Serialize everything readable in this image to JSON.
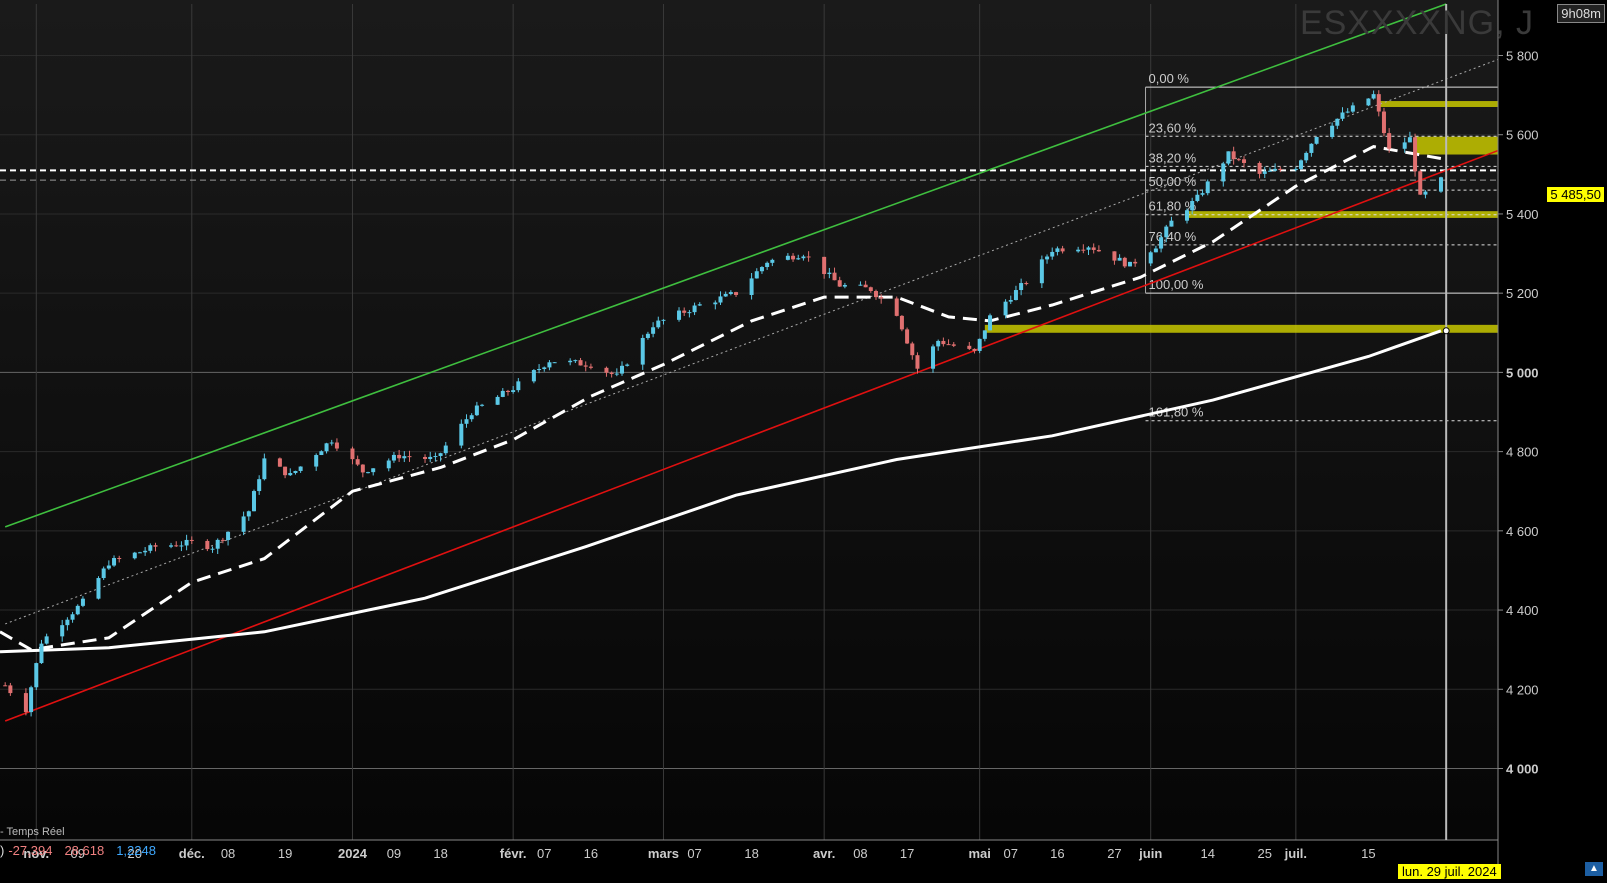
{
  "header": {
    "symbol_watermark": "ESXXXXNG, J",
    "timer": "9h08m"
  },
  "status_bar": {
    "realtime_label": "- Temps Réel",
    "indicator_prefix": ")",
    "indicator_values": [
      "-27,394",
      "28,618",
      "1,2248"
    ],
    "indicator_colors": [
      "#f08080",
      "#f08080",
      "#3fa9ff"
    ]
  },
  "last_price_label": "5 485,50",
  "hover_date_label": "lun. 29 juil. 2024",
  "colors": {
    "up_candle": "#5bc8e6",
    "down_candle": "#e07070",
    "upper_channel": "#3fbf3f",
    "lower_channel": "#e01010",
    "fib_zone": "#c8c800",
    "ma_long": "#ffffff"
  },
  "chart_data": {
    "type": "candlestick",
    "y_axis": {
      "ylim": [
        3870,
        5930
      ],
      "ticks": [
        4000,
        4200,
        4400,
        4600,
        4800,
        5000,
        5200,
        5400,
        5600,
        5800
      ],
      "tick_labels": [
        "4 000",
        "4 200",
        "4 400",
        "4 600",
        "4 800",
        "5 000",
        "5 200",
        "5 400",
        "5 600",
        "5 800"
      ],
      "bold_ticks": [
        4000,
        5000
      ]
    },
    "x_axis": {
      "start_date": "2023-10-25",
      "end_date": "2024-08-09",
      "tick_labels": [
        {
          "date": "2023-11-01",
          "label": "nov.",
          "bold": true
        },
        {
          "date": "2023-11-09",
          "label": "09"
        },
        {
          "date": "2023-11-20",
          "label": "20"
        },
        {
          "date": "2023-12-01",
          "label": "déc.",
          "bold": true
        },
        {
          "date": "2023-12-08",
          "label": "08"
        },
        {
          "date": "2023-12-19",
          "label": "19"
        },
        {
          "date": "2024-01-01",
          "label": "2024",
          "bold": true
        },
        {
          "date": "2024-01-09",
          "label": "09"
        },
        {
          "date": "2024-01-18",
          "label": "18"
        },
        {
          "date": "2024-02-01",
          "label": "févr.",
          "bold": true
        },
        {
          "date": "2024-02-07",
          "label": "07"
        },
        {
          "date": "2024-02-16",
          "label": "16"
        },
        {
          "date": "2024-03-01",
          "label": "mars",
          "bold": true
        },
        {
          "date": "2024-03-07",
          "label": "07"
        },
        {
          "date": "2024-03-18",
          "label": "18"
        },
        {
          "date": "2024-04-01",
          "label": "avr.",
          "bold": true
        },
        {
          "date": "2024-04-08",
          "label": "08"
        },
        {
          "date": "2024-04-17",
          "label": "17"
        },
        {
          "date": "2024-05-01",
          "label": "mai",
          "bold": true
        },
        {
          "date": "2024-05-07",
          "label": "07"
        },
        {
          "date": "2024-05-16",
          "label": "16"
        },
        {
          "date": "2024-05-27",
          "label": "27"
        },
        {
          "date": "2024-06-03",
          "label": "juin",
          "bold": true
        },
        {
          "date": "2024-06-14",
          "label": "14"
        },
        {
          "date": "2024-06-25",
          "label": "25"
        },
        {
          "date": "2024-07-01",
          "label": "juil.",
          "bold": true
        },
        {
          "date": "2024-07-15",
          "label": "15"
        }
      ]
    },
    "price_path": [
      [
        "2023-10-26",
        4210
      ],
      [
        "2023-10-30",
        4150
      ],
      [
        "2023-11-02",
        4320
      ],
      [
        "2023-11-06",
        4370
      ],
      [
        "2023-11-10",
        4420
      ],
      [
        "2023-11-15",
        4520
      ],
      [
        "2023-11-24",
        4560
      ],
      [
        "2023-12-01",
        4570
      ],
      [
        "2023-12-05",
        4560
      ],
      [
        "2023-12-12",
        4650
      ],
      [
        "2023-12-15",
        4780
      ],
      [
        "2023-12-20",
        4740
      ],
      [
        "2023-12-28",
        4830
      ],
      [
        "2024-01-03",
        4750
      ],
      [
        "2024-01-10",
        4790
      ],
      [
        "2024-01-17",
        4780
      ],
      [
        "2024-01-24",
        4900
      ],
      [
        "2024-02-01",
        4960
      ],
      [
        "2024-02-08",
        5030
      ],
      [
        "2024-02-16",
        5020
      ],
      [
        "2024-02-21",
        4990
      ],
      [
        "2024-02-28",
        5120
      ],
      [
        "2024-03-08",
        5170
      ],
      [
        "2024-03-15",
        5200
      ],
      [
        "2024-03-21",
        5280
      ],
      [
        "2024-03-28",
        5300
      ],
      [
        "2024-04-04",
        5220
      ],
      [
        "2024-04-10",
        5210
      ],
      [
        "2024-04-15",
        5150
      ],
      [
        "2024-04-19",
        5010
      ],
      [
        "2024-04-23",
        5080
      ],
      [
        "2024-04-30",
        5050
      ],
      [
        "2024-05-03",
        5140
      ],
      [
        "2024-05-10",
        5230
      ],
      [
        "2024-05-15",
        5310
      ],
      [
        "2024-05-22",
        5320
      ],
      [
        "2024-05-30",
        5270
      ],
      [
        "2024-06-04",
        5320
      ],
      [
        "2024-06-07",
        5380
      ],
      [
        "2024-06-12",
        5440
      ],
      [
        "2024-06-18",
        5550
      ],
      [
        "2024-06-24",
        5500
      ],
      [
        "2024-07-01",
        5520
      ],
      [
        "2024-07-05",
        5600
      ],
      [
        "2024-07-10",
        5650
      ],
      [
        "2024-07-16",
        5700
      ],
      [
        "2024-07-19",
        5560
      ],
      [
        "2024-07-23",
        5590
      ],
      [
        "2024-07-25",
        5440
      ],
      [
        "2024-07-29",
        5485
      ]
    ],
    "moving_averages": [
      {
        "style": "dashed",
        "points": [
          [
            "2023-10-25",
            4345
          ],
          [
            "2023-10-31",
            4300
          ],
          [
            "2023-11-15",
            4330
          ],
          [
            "2023-12-01",
            4470
          ],
          [
            "2023-12-15",
            4530
          ],
          [
            "2024-01-01",
            4700
          ],
          [
            "2024-01-18",
            4760
          ],
          [
            "2024-02-01",
            4830
          ],
          [
            "2024-02-16",
            4940
          ],
          [
            "2024-03-01",
            5020
          ],
          [
            "2024-03-18",
            5130
          ],
          [
            "2024-04-01",
            5190
          ],
          [
            "2024-04-15",
            5190
          ],
          [
            "2024-04-25",
            5140
          ],
          [
            "2024-05-03",
            5130
          ],
          [
            "2024-05-15",
            5170
          ],
          [
            "2024-06-01",
            5240
          ],
          [
            "2024-06-15",
            5330
          ],
          [
            "2024-07-01",
            5470
          ],
          [
            "2024-07-16",
            5570
          ],
          [
            "2024-07-29",
            5540
          ]
        ]
      },
      {
        "style": "solid",
        "points": [
          [
            "2023-10-25",
            4295
          ],
          [
            "2023-11-15",
            4305
          ],
          [
            "2023-12-15",
            4345
          ],
          [
            "2024-01-15",
            4430
          ],
          [
            "2024-02-15",
            4560
          ],
          [
            "2024-03-15",
            4690
          ],
          [
            "2024-04-15",
            4780
          ],
          [
            "2024-05-15",
            4840
          ],
          [
            "2024-06-15",
            4930
          ],
          [
            "2024-07-15",
            5040
          ],
          [
            "2024-07-29",
            5105
          ]
        ]
      }
    ],
    "trend_lines": [
      {
        "color": "upper_channel",
        "from": [
          "2023-10-26",
          4610
        ],
        "to": [
          "2024-07-30",
          5930
        ]
      },
      {
        "color": "lower_channel",
        "from": [
          "2023-10-26",
          4120
        ],
        "to": [
          "2024-08-09",
          5560
        ]
      },
      {
        "color": "dotted",
        "from": [
          "2023-10-26",
          4365
        ],
        "to": [
          "2024-08-09",
          5790
        ]
      }
    ],
    "horizontal_lines": [
      {
        "price": 5510,
        "style": "dashed-white"
      },
      {
        "price": 5485.5,
        "style": "dashed-grey"
      }
    ],
    "fibonacci": {
      "start_date": "2024-06-02",
      "levels": [
        {
          "label": "0,00 %",
          "price": 5720,
          "style": "solid"
        },
        {
          "label": "23,60 %",
          "price": 5596,
          "style": "dotted"
        },
        {
          "label": "38,20 %",
          "price": 5520,
          "style": "dotted"
        },
        {
          "label": "50,00 %",
          "price": 5460,
          "style": "dotted"
        },
        {
          "label": "61,80 %",
          "price": 5398,
          "style": "dotted"
        },
        {
          "label": "76,40 %",
          "price": 5322,
          "style": "dotted"
        },
        {
          "label": "100,00 %",
          "price": 5200,
          "style": "solid"
        },
        {
          "label": "161,80 %",
          "price": 4878,
          "style": "dotted"
        }
      ]
    },
    "zones": [
      {
        "from_date": "2024-07-17",
        "low": 5670,
        "high": 5685
      },
      {
        "from_date": "2024-07-24",
        "low": 5550,
        "high": 5595
      },
      {
        "from_date": "2024-06-10",
        "low": 5390,
        "high": 5407
      },
      {
        "from_date": "2024-05-02",
        "low": 5100,
        "high": 5120
      }
    ],
    "crosshair_date": "2024-07-30",
    "last_price": 5485.5
  }
}
